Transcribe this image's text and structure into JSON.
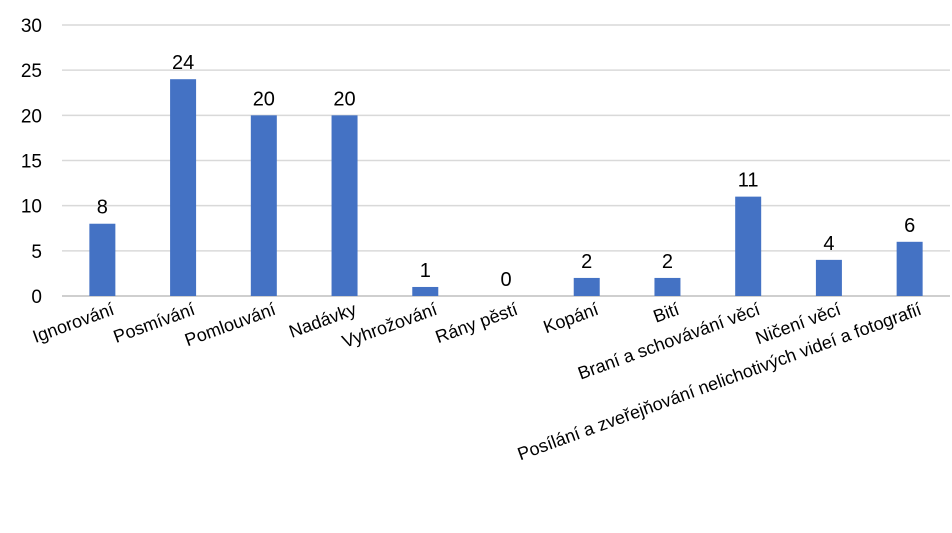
{
  "chart_data": {
    "type": "bar",
    "categories": [
      "Ignorování",
      "Posmívání",
      "Pomlouvání",
      "Nadávky",
      "Vyhrožování",
      "Rány pěstí",
      "Kopání",
      "Bití",
      "Braní a schovávání věcí",
      "Ničení věcí",
      "Posílání a zveřejňování nelichotivých videí a fotografií"
    ],
    "values": [
      8,
      24,
      20,
      20,
      1,
      0,
      2,
      2,
      11,
      4,
      6
    ],
    "ylim": [
      0,
      30
    ],
    "yticks": [
      0,
      5,
      10,
      15,
      20,
      25,
      30
    ],
    "grid": true,
    "legend": "none",
    "data_labels": true,
    "colors": {
      "bar": "#4472C4",
      "grid": "#D9D9D9",
      "axis": "#BFBFBF"
    }
  }
}
